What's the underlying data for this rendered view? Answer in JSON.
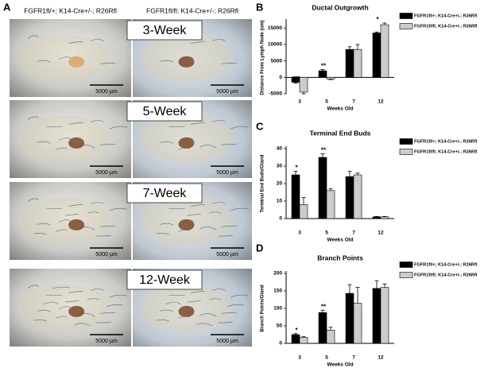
{
  "panel_labels": [
    "A",
    "B",
    "C",
    "D"
  ],
  "figure_a": {
    "column_headers": [
      "FGFR1fl/+; K14-Cre+/-; R26Rfl",
      "FGFR1fl/fl; K14-Cre+/-; R26Rfl"
    ],
    "rows": [
      {
        "label": "3-Week",
        "scale_bars": [
          "5000 µm",
          "5000 µm"
        ]
      },
      {
        "label": "5-Week",
        "scale_bars": [
          "5000 µm",
          "5000 µm"
        ]
      },
      {
        "label": "7-Week",
        "scale_bars": [
          "5000 µm",
          "5000 µm"
        ]
      },
      {
        "label": "12-Week",
        "scale_bars": [
          "5000 µm",
          "5000 µm"
        ]
      }
    ]
  },
  "chart_data": [
    {
      "type": "bar",
      "title": "Ductal Outgrowth",
      "x_label": "Weeks Old",
      "y_label": "Distance From Lymph Node (um)",
      "categories": [
        "3",
        "5",
        "7",
        "12"
      ],
      "ylim": [
        -5000,
        17000
      ],
      "yticks": [
        -5000,
        0,
        5000,
        10000,
        15000
      ],
      "series": [
        {
          "name": "FGFR1fl/+; K14-Cre+/-; R26Rfl",
          "color": "#000000",
          "values": [
            -1500,
            2000,
            8500,
            13500
          ],
          "errors": [
            300,
            400,
            800,
            300
          ]
        },
        {
          "name": "FGFR1fl/fl; K14-Cre+/-; R26Rfl",
          "color": "#cccccc",
          "values": [
            -4500,
            -500,
            8500,
            16000
          ],
          "errors": [
            500,
            200,
            1500,
            500
          ]
        }
      ],
      "annotations": [
        {
          "text": "***",
          "category": "3"
        },
        {
          "text": "**",
          "category": "5"
        },
        {
          "text": "*",
          "category": "12"
        }
      ]
    },
    {
      "type": "bar",
      "title": "Terminal End Buds",
      "x_label": "Weeks Old",
      "y_label": "Terminal End Buds/Gland",
      "categories": [
        "3",
        "5",
        "7",
        "12"
      ],
      "ylim": [
        0,
        40
      ],
      "yticks": [
        0,
        10,
        20,
        30,
        40
      ],
      "series": [
        {
          "name": "FGFR1fl/+; K14-Cre+/-; R26Rfl",
          "color": "#000000",
          "values": [
            25,
            35,
            24,
            1
          ],
          "errors": [
            2,
            2,
            3,
            0.2
          ]
        },
        {
          "name": "FGFR1fl/fl; K14-Cre+/-; R26Rfl",
          "color": "#cccccc",
          "values": [
            8,
            16,
            25,
            1
          ],
          "errors": [
            4,
            1,
            1,
            0.2
          ]
        }
      ],
      "annotations": [
        {
          "text": "*",
          "category": "3"
        },
        {
          "text": "**",
          "category": "5"
        }
      ]
    },
    {
      "type": "bar",
      "title": "Branch Points",
      "x_label": "Weeks Old",
      "y_label": "Branch Points/Gland",
      "categories": [
        "3",
        "5",
        "7",
        "12"
      ],
      "ylim": [
        0,
        200
      ],
      "yticks": [
        0,
        50,
        100,
        150,
        200
      ],
      "series": [
        {
          "name": "FGFR1fl/+; K14-Cre+/-; R26Rfl",
          "color": "#000000",
          "values": [
            25,
            88,
            143,
            157
          ],
          "errors": [
            3,
            7,
            25,
            22
          ]
        },
        {
          "name": "FGFR1fl/fl; K14-Cre+/-; R26Rfl",
          "color": "#cccccc",
          "values": [
            17,
            38,
            115,
            160
          ],
          "errors": [
            2,
            8,
            45,
            10
          ]
        }
      ],
      "annotations": [
        {
          "text": "*",
          "category": "3"
        },
        {
          "text": "**",
          "category": "5"
        }
      ]
    }
  ]
}
